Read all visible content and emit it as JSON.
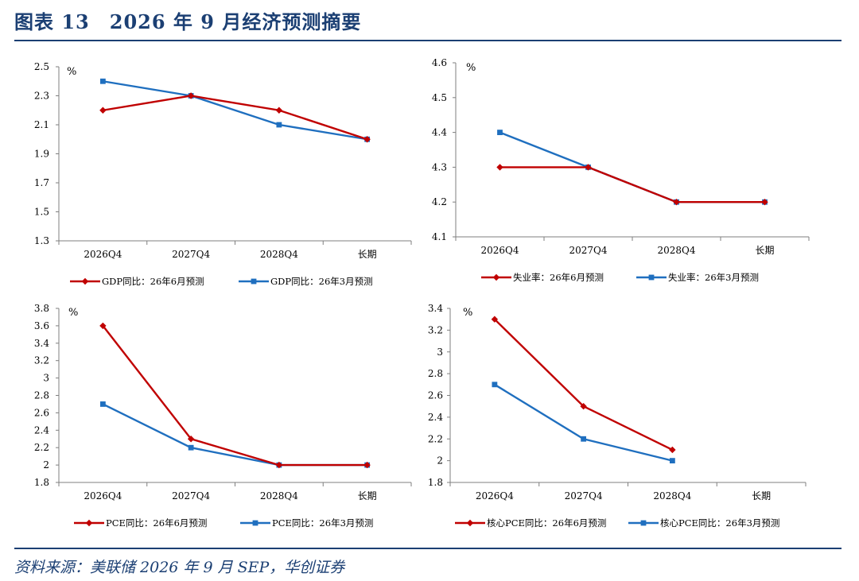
{
  "header": {
    "title": "图表 13　2026 年 9 月经济预测摘要"
  },
  "footer": {
    "source": "资料来源：美联储 2026 年 9 月 SEP，华创证券"
  },
  "colors": {
    "jun_series": "#c00000",
    "mar_series": "#1f6fbf",
    "frame": "#1b3f73"
  },
  "chart_data": [
    {
      "type": "line",
      "unit": "%",
      "categories": [
        "2026Q4",
        "2027Q4",
        "2028Q4",
        "长期"
      ],
      "ylim": [
        1.3,
        2.5
      ],
      "yticks": [
        "2.5",
        "2.3",
        "2.1",
        "1.9",
        "1.7",
        "1.5",
        "1.3"
      ],
      "series": [
        {
          "name": "GDP同比：26年6月预测",
          "marker": "diamond",
          "values": [
            2.2,
            2.3,
            2.2,
            2.0
          ]
        },
        {
          "name": "GDP同比：26年3月预测",
          "marker": "square",
          "values": [
            2.4,
            2.3,
            2.1,
            2.0
          ]
        }
      ]
    },
    {
      "type": "line",
      "unit": "%",
      "categories": [
        "2026Q4",
        "2027Q4",
        "2028Q4",
        "长期"
      ],
      "ylim": [
        4.1,
        4.6
      ],
      "yticks": [
        "4.6",
        "4.5",
        "4.4",
        "4.3",
        "4.2",
        "4.1"
      ],
      "series": [
        {
          "name": "失业率：26年6月预测",
          "marker": "diamond",
          "values": [
            4.3,
            4.3,
            4.2,
            4.2
          ]
        },
        {
          "name": "失业率：26年3月预测",
          "marker": "square",
          "values": [
            4.4,
            4.3,
            4.2,
            4.2
          ]
        }
      ]
    },
    {
      "type": "line",
      "unit": "%",
      "categories": [
        "2026Q4",
        "2027Q4",
        "2028Q4",
        "长期"
      ],
      "ylim": [
        1.8,
        3.8
      ],
      "yticks": [
        "3.8",
        "3.6",
        "3.4",
        "3.2",
        "3",
        "2.8",
        "2.6",
        "2.4",
        "2.2",
        "2",
        "1.8"
      ],
      "series": [
        {
          "name": "PCE同比：26年6月预测",
          "marker": "diamond",
          "values": [
            3.6,
            2.3,
            2.0,
            2.0
          ]
        },
        {
          "name": "PCE同比：26年3月预测",
          "marker": "square",
          "values": [
            2.7,
            2.2,
            2.0,
            2.0
          ]
        }
      ]
    },
    {
      "type": "line",
      "unit": "%",
      "categories": [
        "2026Q4",
        "2027Q4",
        "2028Q4",
        "长期"
      ],
      "ylim": [
        1.8,
        3.4
      ],
      "yticks": [
        "3.4",
        "3.2",
        "3",
        "2.8",
        "2.6",
        "2.4",
        "2.2",
        "2",
        "1.8"
      ],
      "series": [
        {
          "name": "核心PCE同比：26年6月预测",
          "marker": "diamond",
          "values": [
            3.3,
            2.5,
            2.1,
            null
          ]
        },
        {
          "name": "核心PCE同比：26年3月预测",
          "marker": "square",
          "values": [
            2.7,
            2.2,
            2.0,
            null
          ]
        }
      ]
    }
  ]
}
